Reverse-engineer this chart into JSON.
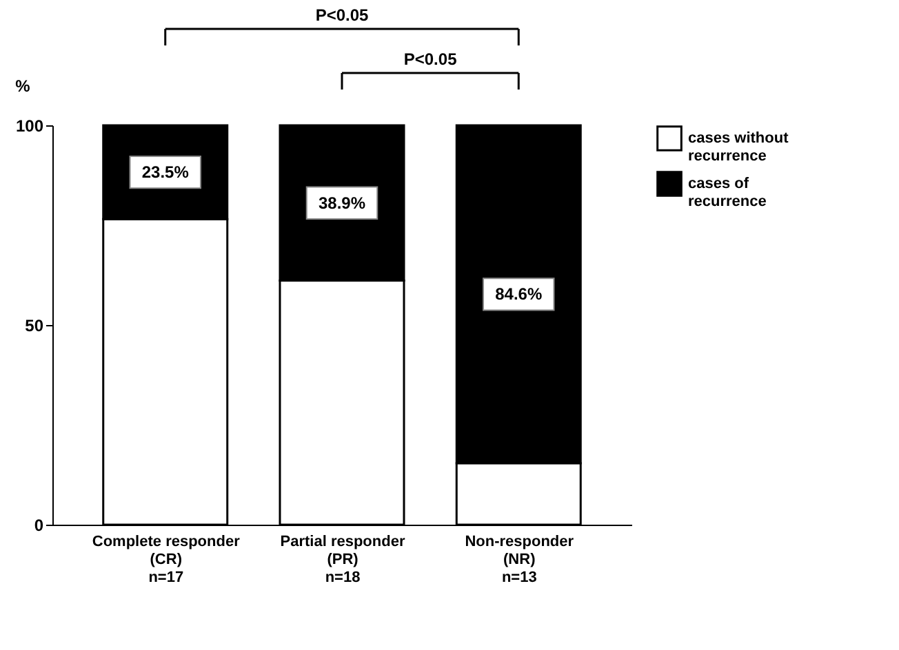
{
  "chart_data": {
    "type": "bar",
    "stacked": true,
    "categories": [
      "Complete responder\n(CR)\nn=17",
      "Partial responder\n(PR)\nn=18",
      "Non-responder\n(NR)\nn=13"
    ],
    "series": [
      {
        "name": "cases without\nrecurrence",
        "color": "#ffffff",
        "values": [
          76.5,
          61.1,
          15.4
        ]
      },
      {
        "name": "cases of\nrecurrence",
        "color": "#000000",
        "values": [
          23.5,
          38.9,
          84.6
        ],
        "value_labels": [
          "23.5%",
          "38.9%",
          "84.6%"
        ]
      }
    ],
    "ylabel": "%",
    "ylim": [
      0,
      100
    ],
    "yticks": [
      0,
      50,
      100
    ],
    "grid": false,
    "legend": "right",
    "annotations": [
      "P<0.05",
      "P<0.05"
    ]
  }
}
